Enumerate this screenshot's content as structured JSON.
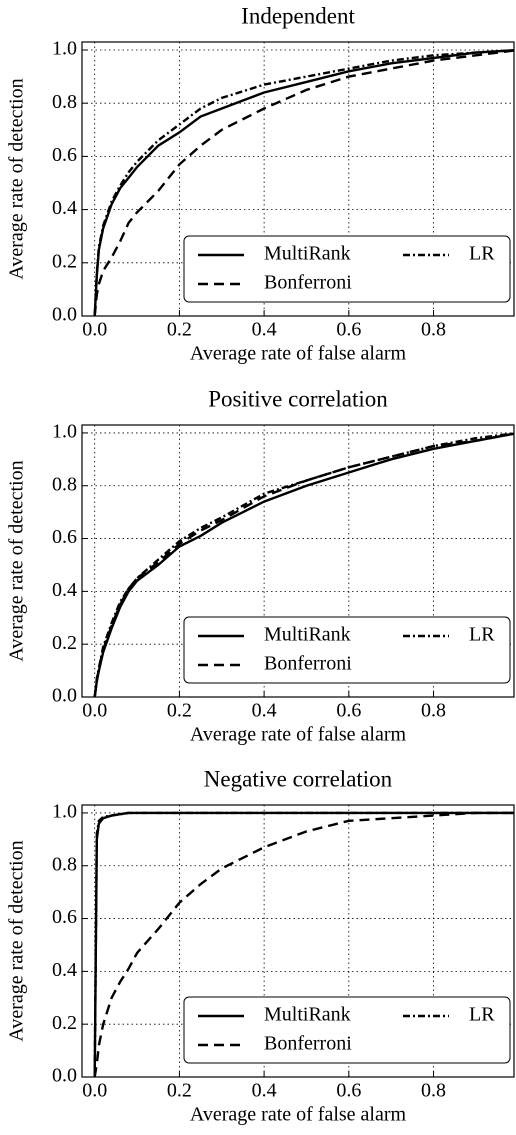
{
  "chart_data": [
    {
      "type": "line",
      "title": "Independent",
      "xlabel": "Average rate of false alarm",
      "ylabel": "Average rate of detection",
      "x": [
        0,
        0.005,
        0.01,
        0.02,
        0.04,
        0.06,
        0.08,
        0.1,
        0.15,
        0.2,
        0.25,
        0.3,
        0.4,
        0.5,
        0.6,
        0.7,
        0.8,
        0.9,
        1.0
      ],
      "series": [
        {
          "name": "MultiRank",
          "color": "#000000",
          "linestyle": "solid",
          "values": [
            0,
            0.15,
            0.25,
            0.33,
            0.42,
            0.48,
            0.52,
            0.56,
            0.64,
            0.69,
            0.75,
            0.78,
            0.84,
            0.88,
            0.92,
            0.95,
            0.97,
            0.99,
            1.0
          ]
        },
        {
          "name": "Bonferroni",
          "color": "#000000",
          "linestyle": "dashed",
          "values": [
            0,
            0.08,
            0.12,
            0.17,
            0.22,
            0.28,
            0.35,
            0.39,
            0.47,
            0.57,
            0.64,
            0.7,
            0.78,
            0.85,
            0.9,
            0.93,
            0.96,
            0.98,
            1.0
          ]
        },
        {
          "name": "LR",
          "color": "#000000",
          "linestyle": "dashdot",
          "values": [
            0,
            0.16,
            0.26,
            0.34,
            0.43,
            0.49,
            0.54,
            0.58,
            0.66,
            0.72,
            0.78,
            0.82,
            0.87,
            0.9,
            0.93,
            0.96,
            0.98,
            0.99,
            1.0
          ]
        }
      ],
      "xlim": [
        -0.03,
        0.99
      ],
      "ylim": [
        0,
        1.03
      ],
      "xticks": [
        {
          "value": 0,
          "label": "0.0"
        },
        0.2,
        0.4,
        0.6,
        0.8
      ],
      "yticks": [
        {
          "value": 0,
          "label": "0.0"
        },
        0.2,
        0.4,
        0.6,
        0.8,
        {
          "value": 1,
          "label": "1.0"
        }
      ],
      "grid": true,
      "legend": "lower right"
    },
    {
      "type": "line",
      "title": "Positive correlation",
      "xlabel": "Average rate of false alarm",
      "ylabel": "Average rate of detection",
      "x": [
        0,
        0.005,
        0.01,
        0.02,
        0.04,
        0.06,
        0.08,
        0.1,
        0.15,
        0.2,
        0.25,
        0.3,
        0.4,
        0.5,
        0.6,
        0.7,
        0.8,
        0.9,
        1.0
      ],
      "series": [
        {
          "name": "MultiRank",
          "color": "#000000",
          "linestyle": "solid",
          "values": [
            0,
            0.06,
            0.1,
            0.17,
            0.26,
            0.34,
            0.4,
            0.44,
            0.5,
            0.57,
            0.61,
            0.66,
            0.74,
            0.8,
            0.85,
            0.9,
            0.94,
            0.97,
            1.0
          ]
        },
        {
          "name": "Bonferroni",
          "color": "#000000",
          "linestyle": "dashed",
          "values": [
            0,
            0.06,
            0.11,
            0.18,
            0.27,
            0.35,
            0.41,
            0.45,
            0.51,
            0.58,
            0.63,
            0.67,
            0.76,
            0.82,
            0.87,
            0.91,
            0.95,
            0.97,
            1.0
          ]
        },
        {
          "name": "LR",
          "color": "#000000",
          "linestyle": "dashdot",
          "values": [
            0,
            0.07,
            0.11,
            0.19,
            0.28,
            0.36,
            0.41,
            0.45,
            0.52,
            0.59,
            0.64,
            0.68,
            0.77,
            0.82,
            0.87,
            0.91,
            0.95,
            0.98,
            1.0
          ]
        }
      ],
      "xlim": [
        -0.03,
        0.99
      ],
      "ylim": [
        0,
        1.03
      ],
      "xticks": [
        {
          "value": 0,
          "label": "0.0"
        },
        0.2,
        0.4,
        0.6,
        0.8
      ],
      "yticks": [
        {
          "value": 0,
          "label": "0.0"
        },
        0.2,
        0.4,
        0.6,
        0.8,
        {
          "value": 1,
          "label": "1.0"
        }
      ],
      "grid": true,
      "legend": "lower right"
    },
    {
      "type": "line",
      "title": "Negative correlation",
      "xlabel": "Average rate of false alarm",
      "ylabel": "Average rate of detection",
      "x": [
        0,
        0.005,
        0.01,
        0.02,
        0.04,
        0.06,
        0.08,
        0.1,
        0.15,
        0.2,
        0.25,
        0.3,
        0.4,
        0.5,
        0.6,
        0.7,
        0.8,
        0.9,
        1.0
      ],
      "series": [
        {
          "name": "MultiRank",
          "color": "#000000",
          "linestyle": "solid",
          "values": [
            0,
            0.9,
            0.96,
            0.98,
            0.99,
            0.995,
            1.0,
            1.0,
            1.0,
            1.0,
            1.0,
            1.0,
            1.0,
            1.0,
            1.0,
            1.0,
            1.0,
            1.0,
            1.0
          ]
        },
        {
          "name": "Bonferroni",
          "color": "#000000",
          "linestyle": "dashed",
          "values": [
            0,
            0.05,
            0.12,
            0.2,
            0.3,
            0.36,
            0.41,
            0.47,
            0.56,
            0.66,
            0.73,
            0.79,
            0.87,
            0.93,
            0.97,
            0.98,
            0.99,
            1.0,
            1.0
          ]
        },
        {
          "name": "LR",
          "color": "#000000",
          "linestyle": "dashdot",
          "values": [
            0,
            0.92,
            0.97,
            0.985,
            0.99,
            0.995,
            1.0,
            1.0,
            1.0,
            1.0,
            1.0,
            1.0,
            1.0,
            1.0,
            1.0,
            1.0,
            1.0,
            1.0,
            1.0
          ]
        }
      ],
      "xlim": [
        -0.03,
        0.99
      ],
      "ylim": [
        0,
        1.03
      ],
      "xticks": [
        {
          "value": 0,
          "label": "0.0"
        },
        0.2,
        0.4,
        0.6,
        0.8
      ],
      "yticks": [
        {
          "value": 0,
          "label": "0.0"
        },
        0.2,
        0.4,
        0.6,
        0.8,
        {
          "value": 1,
          "label": "1.0"
        }
      ],
      "grid": true,
      "legend": "lower right"
    }
  ]
}
